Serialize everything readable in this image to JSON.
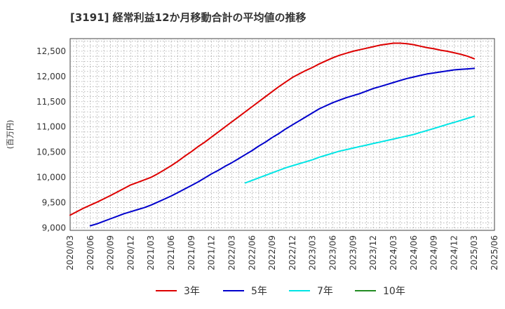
{
  "chart_data": {
    "type": "line",
    "title": "[3191]  経常利益12か月移動合計の平均値の推移",
    "ylabel": "(百万円)",
    "xlabel": "",
    "ylim": [
      8950,
      12750
    ],
    "yticks": [
      9000,
      9500,
      10000,
      10500,
      11000,
      11500,
      12000,
      12500
    ],
    "ytick_labels": [
      "9,000",
      "9,500",
      "10,000",
      "10,500",
      "11,000",
      "11,500",
      "12,000",
      "12,500"
    ],
    "xticks": [
      "2020/03",
      "2020/06",
      "2020/09",
      "2020/12",
      "2021/03",
      "2021/06",
      "2021/09",
      "2021/12",
      "2022/03",
      "2022/06",
      "2022/09",
      "2022/12",
      "2023/03",
      "2023/06",
      "2023/09",
      "2023/12",
      "2024/03",
      "2024/06",
      "2024/09",
      "2024/12",
      "2025/03",
      "2025/06"
    ],
    "grid": true,
    "legend_position": "bottom",
    "series": [
      {
        "name": "3年",
        "color": "#dd0000",
        "x": [
          "2020/03",
          "2020/04",
          "2020/05",
          "2020/06",
          "2020/07",
          "2020/08",
          "2020/09",
          "2020/10",
          "2020/11",
          "2020/12",
          "2021/01",
          "2021/02",
          "2021/03",
          "2021/04",
          "2021/05",
          "2021/06",
          "2021/07",
          "2021/08",
          "2021/09",
          "2021/10",
          "2021/11",
          "2021/12",
          "2022/01",
          "2022/02",
          "2022/03",
          "2022/04",
          "2022/05",
          "2022/06",
          "2022/07",
          "2022/08",
          "2022/09",
          "2022/10",
          "2022/11",
          "2022/12",
          "2023/01",
          "2023/02",
          "2023/03",
          "2023/04",
          "2023/05",
          "2023/06",
          "2023/07",
          "2023/08",
          "2023/09",
          "2023/10",
          "2023/11",
          "2023/12",
          "2024/01",
          "2024/02",
          "2024/03",
          "2024/04",
          "2024/05",
          "2024/06",
          "2024/07",
          "2024/08",
          "2024/09",
          "2024/10",
          "2024/11",
          "2024/12",
          "2025/01",
          "2025/02",
          "2025/03"
        ],
        "values": [
          9250,
          9320,
          9390,
          9450,
          9510,
          9575,
          9640,
          9710,
          9780,
          9850,
          9900,
          9950,
          10000,
          10070,
          10150,
          10230,
          10320,
          10420,
          10510,
          10610,
          10700,
          10800,
          10900,
          11000,
          11100,
          11200,
          11300,
          11400,
          11500,
          11600,
          11700,
          11800,
          11890,
          11980,
          12050,
          12120,
          12180,
          12250,
          12310,
          12370,
          12420,
          12460,
          12500,
          12530,
          12560,
          12590,
          12620,
          12640,
          12660,
          12660,
          12650,
          12630,
          12600,
          12570,
          12550,
          12520,
          12500,
          12470,
          12440,
          12400,
          12350
        ]
      },
      {
        "name": "5年",
        "color": "#0000cc",
        "x": [
          "2020/06",
          "2020/07",
          "2020/08",
          "2020/09",
          "2020/10",
          "2020/11",
          "2020/12",
          "2021/01",
          "2021/02",
          "2021/03",
          "2021/04",
          "2021/05",
          "2021/06",
          "2021/07",
          "2021/08",
          "2021/09",
          "2021/10",
          "2021/11",
          "2021/12",
          "2022/01",
          "2022/02",
          "2022/03",
          "2022/04",
          "2022/05",
          "2022/06",
          "2022/07",
          "2022/08",
          "2022/09",
          "2022/10",
          "2022/11",
          "2022/12",
          "2023/01",
          "2023/02",
          "2023/03",
          "2023/04",
          "2023/05",
          "2023/06",
          "2023/07",
          "2023/08",
          "2023/09",
          "2023/10",
          "2023/11",
          "2023/12",
          "2024/01",
          "2024/02",
          "2024/03",
          "2024/04",
          "2024/05",
          "2024/06",
          "2024/07",
          "2024/08",
          "2024/09",
          "2024/10",
          "2024/11",
          "2024/12",
          "2025/01",
          "2025/02",
          "2025/03"
        ],
        "values": [
          9040,
          9080,
          9130,
          9180,
          9230,
          9280,
          9320,
          9360,
          9400,
          9450,
          9510,
          9570,
          9630,
          9700,
          9770,
          9840,
          9910,
          9990,
          10070,
          10140,
          10220,
          10290,
          10370,
          10450,
          10530,
          10620,
          10700,
          10790,
          10870,
          10960,
          11040,
          11120,
          11200,
          11280,
          11360,
          11420,
          11480,
          11530,
          11580,
          11620,
          11660,
          11710,
          11760,
          11800,
          11840,
          11880,
          11920,
          11960,
          11990,
          12020,
          12050,
          12070,
          12090,
          12110,
          12130,
          12140,
          12150,
          12160
        ]
      },
      {
        "name": "7年",
        "color": "#00e5e5",
        "x": [
          "2022/05",
          "2022/06",
          "2022/07",
          "2022/08",
          "2022/09",
          "2022/10",
          "2022/11",
          "2022/12",
          "2023/01",
          "2023/02",
          "2023/03",
          "2023/04",
          "2023/05",
          "2023/06",
          "2023/07",
          "2023/08",
          "2023/09",
          "2023/10",
          "2023/11",
          "2023/12",
          "2024/01",
          "2024/02",
          "2024/03",
          "2024/04",
          "2024/05",
          "2024/06",
          "2024/07",
          "2024/08",
          "2024/09",
          "2024/10",
          "2024/11",
          "2024/12",
          "2025/01",
          "2025/02",
          "2025/03"
        ],
        "values": [
          9890,
          9940,
          9990,
          10040,
          10090,
          10140,
          10190,
          10230,
          10270,
          10310,
          10350,
          10400,
          10440,
          10480,
          10520,
          10550,
          10580,
          10610,
          10640,
          10670,
          10700,
          10730,
          10760,
          10790,
          10820,
          10850,
          10890,
          10930,
          10970,
          11010,
          11050,
          11090,
          11130,
          11170,
          11210
        ]
      },
      {
        "name": "10年",
        "color": "#228b22",
        "x": [],
        "values": []
      }
    ]
  }
}
